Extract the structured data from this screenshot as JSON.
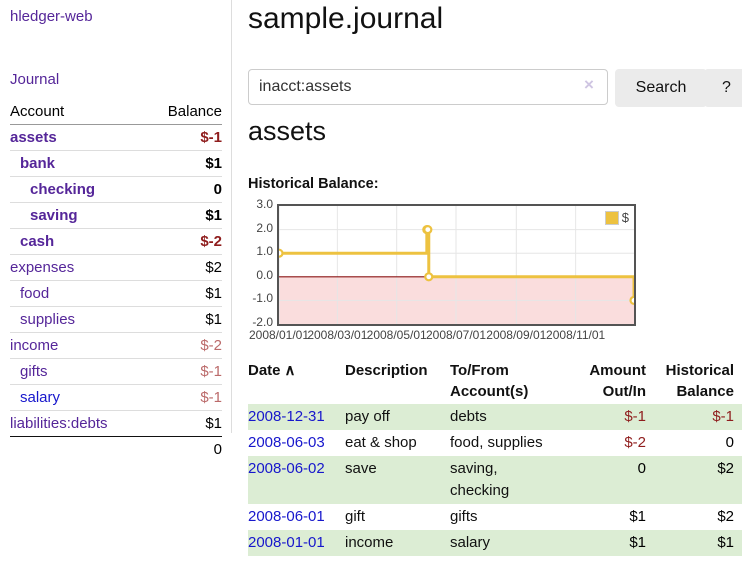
{
  "app": {
    "title": "hledger-web",
    "nav_journal": "Journal"
  },
  "sidebar": {
    "header": {
      "account": "Account",
      "balance": "Balance"
    },
    "accounts": [
      {
        "name": "assets",
        "indent": 0,
        "bold": true,
        "value": "$-1",
        "value_class": "neg-dark"
      },
      {
        "name": "bank",
        "indent": 1,
        "bold": true,
        "value": "$1",
        "value_class": "pos"
      },
      {
        "name": "checking",
        "indent": 2,
        "bold": true,
        "value": "0",
        "value_class": "pos"
      },
      {
        "name": "saving",
        "indent": 2,
        "bold": true,
        "value": "$1",
        "value_class": "pos"
      },
      {
        "name": "cash",
        "indent": 1,
        "bold": true,
        "value": "$-2",
        "value_class": "neg-dark"
      },
      {
        "name": "expenses",
        "indent": 0,
        "bold": false,
        "value": "$2",
        "value_class": "pos"
      },
      {
        "name": "food",
        "indent": 1,
        "bold": false,
        "value": "$1",
        "value_class": "pos"
      },
      {
        "name": "supplies",
        "indent": 1,
        "bold": false,
        "value": "$1",
        "value_class": "pos"
      },
      {
        "name": "income",
        "indent": 0,
        "bold": false,
        "value": "$-2",
        "value_class": "neg-light"
      },
      {
        "name": "gifts",
        "indent": 1,
        "bold": false,
        "value": "$-1",
        "value_class": "neg-light"
      },
      {
        "name": "salary",
        "indent": 1,
        "bold": false,
        "link_color": "blue",
        "value": "$-1",
        "value_class": "neg-light"
      },
      {
        "name": "liabilities:debts",
        "indent": 0,
        "bold": false,
        "value": "$1",
        "value_class": "pos"
      }
    ],
    "total": "0"
  },
  "header": {
    "title": "sample.journal"
  },
  "search": {
    "value": "inacct:assets",
    "clear_icon": "×",
    "button": "Search",
    "help_button": "?"
  },
  "account_page": {
    "heading": "assets",
    "chart_label": "Historical Balance:"
  },
  "chart_data": {
    "type": "line",
    "step": true,
    "title": "Historical Balance:",
    "series": [
      {
        "name": "$",
        "color": "#edc240",
        "points": [
          [
            "2008/01/01",
            1
          ],
          [
            "2008/06/01",
            2
          ],
          [
            "2008/06/02",
            2
          ],
          [
            "2008/06/03",
            0
          ],
          [
            "2008/12/31",
            -1
          ]
        ]
      }
    ],
    "x_range": [
      "2008/01/01",
      "2008/12/31"
    ],
    "ylim": [
      -2,
      3
    ],
    "yticks": [
      -2,
      -1,
      0,
      1,
      2,
      3
    ],
    "ytick_labels": [
      "-2.0",
      "-1.0",
      "0.0",
      "1.0",
      "2.0",
      "3.0"
    ],
    "xticks": [
      "2008/01/01",
      "2008/03/01",
      "2008/05/01",
      "2008/07/01",
      "2008/09/01",
      "2008/11/01"
    ],
    "legend_position": "top-right",
    "grid": true
  },
  "register": {
    "headers": {
      "date": "Date",
      "sort_icon": "∧",
      "description": "Description",
      "accounts": "To/From Account(s)",
      "amount": "Amount Out/In",
      "balance": "Historical Balance"
    },
    "rows": [
      {
        "date": "2008-12-31",
        "description": "pay off",
        "accounts": "debts",
        "amount": "$-1",
        "amount_class": "neg-dark",
        "balance": "$-1",
        "balance_class": "neg-dark"
      },
      {
        "date": "2008-06-03",
        "description": "eat & shop",
        "accounts": "food, supplies",
        "amount": "$-2",
        "amount_class": "neg-dark",
        "balance": "0",
        "balance_class": "pos"
      },
      {
        "date": "2008-06-02",
        "description": "save",
        "accounts": "saving,\nchecking",
        "amount": "0",
        "amount_class": "pos",
        "balance": "$2",
        "balance_class": "pos"
      },
      {
        "date": "2008-06-01",
        "description": "gift",
        "accounts": "gifts",
        "amount": "$1",
        "amount_class": "pos",
        "balance": "$2",
        "balance_class": "pos"
      },
      {
        "date": "2008-01-01",
        "description": "income",
        "accounts": "salary",
        "amount": "$1",
        "amount_class": "pos",
        "balance": "$1",
        "balance_class": "pos"
      }
    ]
  },
  "colors": {
    "purple": "#552699",
    "blue": "#1717cc",
    "neg_dark": "#8f1d1d",
    "neg_light": "#bb6a6a",
    "row_green": "#dcedd4",
    "gold": "#edc240",
    "pink": "#fadddd",
    "zero_red": "#8b1414",
    "grid": "#e6e6e6",
    "plot_border": "#545454",
    "divider": "#dddddd",
    "button_bg": "#ebebeb"
  }
}
